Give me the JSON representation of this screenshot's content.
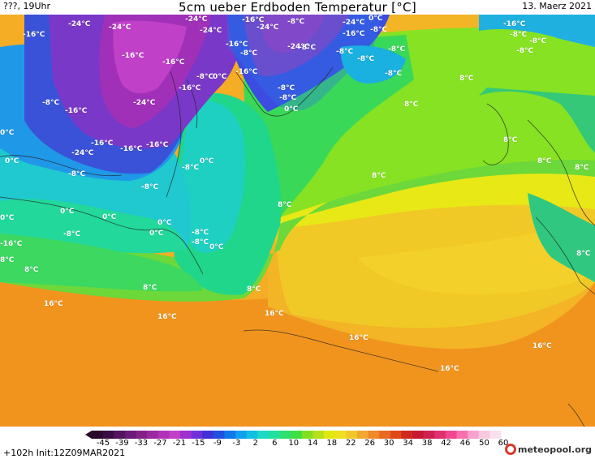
{
  "header": {
    "left": "???, 19Uhr",
    "title": "5cm ueber Erdboden Temperatur [°C]",
    "right": "13. Maerz 2021"
  },
  "footer": {
    "init": "+102h Init:12Z09MAR2021",
    "logo": "meteopool.org"
  },
  "colorbar": {
    "ticks": [
      "-45",
      "-39",
      "-33",
      "-27",
      "-21",
      "-15",
      "-9",
      "-3",
      "2",
      "6",
      "10",
      "14",
      "18",
      "22",
      "26",
      "30",
      "34",
      "38",
      "42",
      "46",
      "50",
      "60"
    ],
    "colors": [
      "#2a0a2a",
      "#3b0d45",
      "#52145f",
      "#6a1a78",
      "#832088",
      "#9a28a0",
      "#b032b8",
      "#c040c8",
      "#a030d0",
      "#7030d8",
      "#4030d8",
      "#2050e0",
      "#1078e8",
      "#10a0f0",
      "#10c0e0",
      "#20d8c8",
      "#20e0a0",
      "#30e070",
      "#40e040",
      "#80e020",
      "#b8e018",
      "#e0e810",
      "#f0e020",
      "#f0c828",
      "#f0a830",
      "#f08a28",
      "#e86a20",
      "#e04818",
      "#d02820",
      "#c81830",
      "#d02050",
      "#e03070",
      "#f04890",
      "#f870b0",
      "#f8a0d0",
      "#f8c8e0",
      "#f8e0f0"
    ]
  },
  "labels": [
    {
      "text": "-24°C"
    },
    {
      "text": "-24°C"
    },
    {
      "text": "-16°C"
    },
    {
      "text": "-24°C"
    },
    {
      "text": "-16°C"
    },
    {
      "text": "-24°C"
    },
    {
      "text": "-24°C"
    },
    {
      "text": "-16°C"
    },
    {
      "text": "-8°C"
    },
    {
      "text": "-8°C"
    },
    {
      "text": "-24°C"
    },
    {
      "text": "-16°C"
    },
    {
      "text": "-8°C"
    },
    {
      "text": "0°C"
    },
    {
      "text": "-16°C"
    },
    {
      "text": "-8°C"
    },
    {
      "text": "-8°C"
    },
    {
      "text": "-8°C"
    },
    {
      "text": "0°C"
    },
    {
      "text": "-16°C"
    },
    {
      "text": "-24°C"
    },
    {
      "text": "-16°C"
    },
    {
      "text": "-16°C"
    },
    {
      "text": "-16°C"
    },
    {
      "text": "-16°C"
    },
    {
      "text": "-16°C"
    },
    {
      "text": "-8°C"
    },
    {
      "text": "-8°C"
    },
    {
      "text": "-8°C"
    },
    {
      "text": "0°C"
    },
    {
      "text": "0°C"
    },
    {
      "text": "0°C"
    },
    {
      "text": "0°C"
    },
    {
      "text": "0°C"
    },
    {
      "text": "-8°C"
    },
    {
      "text": "-8°C"
    },
    {
      "text": "0°C"
    },
    {
      "text": "8°C"
    },
    {
      "text": "8°C"
    },
    {
      "text": "8°C"
    },
    {
      "text": "8°C"
    },
    {
      "text": "8°C"
    },
    {
      "text": "8°C"
    },
    {
      "text": "8°C"
    },
    {
      "text": "8°C"
    },
    {
      "text": "8°C"
    },
    {
      "text": "8°C"
    },
    {
      "text": "8°C"
    },
    {
      "text": "16°C"
    },
    {
      "text": "16°C"
    },
    {
      "text": "16°C"
    },
    {
      "text": "16°C"
    },
    {
      "text": "16°C"
    },
    {
      "text": "16°C"
    },
    {
      "text": "-8°C"
    },
    {
      "text": "-16°C"
    },
    {
      "text": "-24°C"
    },
    {
      "text": "-16°C"
    },
    {
      "text": "-8°C"
    },
    {
      "text": "-24°C"
    },
    {
      "text": "-16°C"
    },
    {
      "text": "-8°C"
    },
    {
      "text": "-8°C"
    },
    {
      "text": "0°C"
    },
    {
      "text": "-8°C"
    },
    {
      "text": "-8°C"
    },
    {
      "text": "0°C"
    },
    {
      "text": "0°C"
    },
    {
      "text": "-8°C"
    },
    {
      "text": "0°C"
    },
    {
      "text": "8°C"
    },
    {
      "text": "-8°C"
    },
    {
      "text": "-8°C"
    },
    {
      "text": "-8°C"
    }
  ]
}
